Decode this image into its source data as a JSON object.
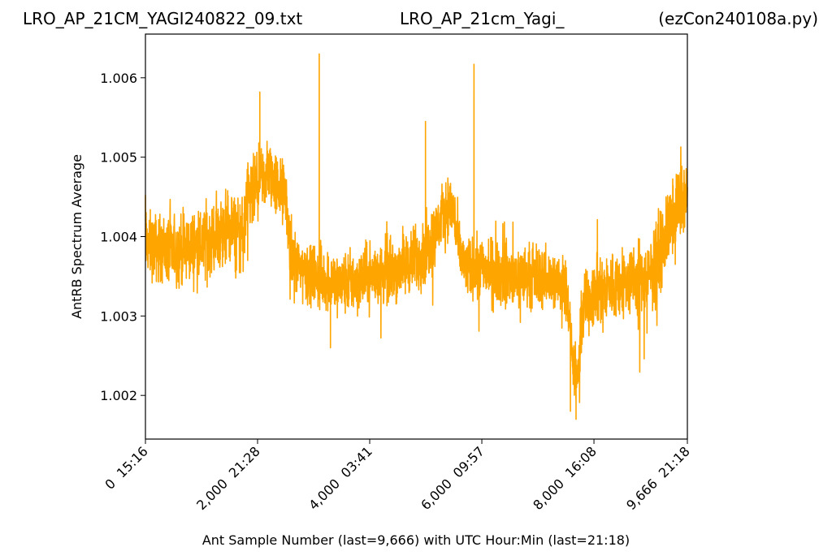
{
  "header": {
    "left": "LRO_AP_21CM_YAGI240822_09.txt",
    "center": "LRO_AP_21cm_Yagi_",
    "right": "(ezCon240108a.py)"
  },
  "chart_data": {
    "type": "line",
    "xlabel": "Ant Sample Number (last=9,666) with UTC Hour:Min (last=21:18)",
    "ylabel": "AntRB Spectrum Average",
    "xlim": [
      0,
      9666
    ],
    "ylim": [
      1.00145,
      1.00655
    ],
    "x_ticks": [
      {
        "value": 0,
        "label": "0  15:16"
      },
      {
        "value": 2000,
        "label": "2,000  21:28"
      },
      {
        "value": 4000,
        "label": "4,000  03:41"
      },
      {
        "value": 6000,
        "label": "6,000  09:57"
      },
      {
        "value": 8000,
        "label": "8,000  16:08"
      },
      {
        "value": 9666,
        "label": "9,666  21:18"
      }
    ],
    "y_ticks": [
      {
        "value": 1.002,
        "label": "1.002"
      },
      {
        "value": 1.003,
        "label": "1.003"
      },
      {
        "value": 1.004,
        "label": "1.004"
      },
      {
        "value": 1.005,
        "label": "1.005"
      },
      {
        "value": 1.006,
        "label": "1.006"
      }
    ],
    "series": [
      {
        "color": "#ffa500",
        "trend": {
          "x": [
            0,
            500,
            1000,
            1500,
            1750,
            1800,
            2000,
            2200,
            2500,
            2600,
            3000,
            3500,
            4000,
            4500,
            5000,
            5200,
            5400,
            5500,
            5600,
            5700,
            6000,
            6500,
            7000,
            7500,
            7600,
            7700,
            7800,
            8000,
            8500,
            9000,
            9300,
            9500,
            9666
          ],
          "y": [
            1.0039,
            1.0038,
            1.0039,
            1.0041,
            1.004,
            1.0044,
            1.0046,
            1.0048,
            1.0045,
            1.0037,
            1.0035,
            1.0034,
            1.0035,
            1.0036,
            1.0038,
            1.0041,
            1.0044,
            1.0043,
            1.0038,
            1.0036,
            1.0036,
            1.0035,
            1.0035,
            1.0034,
            1.0026,
            1.0021,
            1.0031,
            1.0033,
            1.0034,
            1.0035,
            1.004,
            1.0044,
            1.0045
          ]
        },
        "noise": {
          "x": [
            0,
            1800,
            2600,
            5000,
            5500,
            7500,
            7600,
            7800,
            9666
          ],
          "amplitude": [
            0.00045,
            0.00052,
            0.00042,
            0.00045,
            0.00042,
            0.00042,
            0.00035,
            0.00045,
            0.00052
          ]
        },
        "spikes": [
          {
            "x": 3100,
            "y": 1.0063
          },
          {
            "x": 5860,
            "y": 1.00617
          },
          {
            "x": 4995,
            "y": 1.00545
          },
          {
            "x": 2040,
            "y": 1.00582
          },
          {
            "x": 7680,
            "y": 1.0017
          },
          {
            "x": 7580,
            "y": 1.0018
          },
          {
            "x": 3300,
            "y": 1.0026
          }
        ]
      }
    ]
  }
}
